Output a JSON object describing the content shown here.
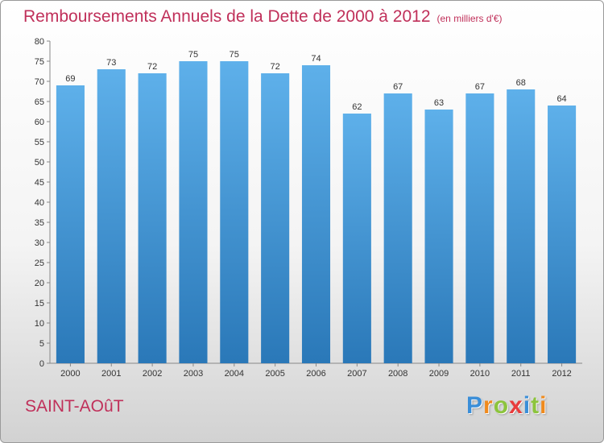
{
  "title": "Remboursements Annuels de la Dette de 2000 à 2012",
  "subtitle": "(en milliers d'€)",
  "place": "SAINT-AOûT",
  "logo": {
    "letters": [
      {
        "ch": "P",
        "color": "#3a8ed8"
      },
      {
        "ch": "r",
        "color": "#f08a1c"
      },
      {
        "ch": "o",
        "color": "#8cc43c"
      },
      {
        "ch": "x",
        "color": "#e83c3c"
      },
      {
        "ch": "i",
        "color": "#3a8ed8"
      },
      {
        "ch": "t",
        "color": "#8cc43c"
      },
      {
        "ch": "i",
        "color": "#f08a1c"
      }
    ]
  },
  "colors": {
    "bar_top": "#5eb0ea",
    "bar_bottom": "#2a78b8",
    "title": "#c0305a"
  },
  "chart_data": {
    "type": "bar",
    "categories": [
      "2000",
      "2001",
      "2002",
      "2003",
      "2004",
      "2005",
      "2006",
      "2007",
      "2008",
      "2009",
      "2010",
      "2011",
      "2012"
    ],
    "values": [
      69,
      73,
      72,
      75,
      75,
      72,
      74,
      62,
      67,
      63,
      67,
      68,
      64
    ],
    "ylim": [
      0,
      80
    ],
    "yticks": [
      0,
      5,
      10,
      15,
      20,
      25,
      30,
      35,
      40,
      45,
      50,
      55,
      60,
      65,
      70,
      75,
      80
    ],
    "grid": false,
    "legend": "none"
  }
}
